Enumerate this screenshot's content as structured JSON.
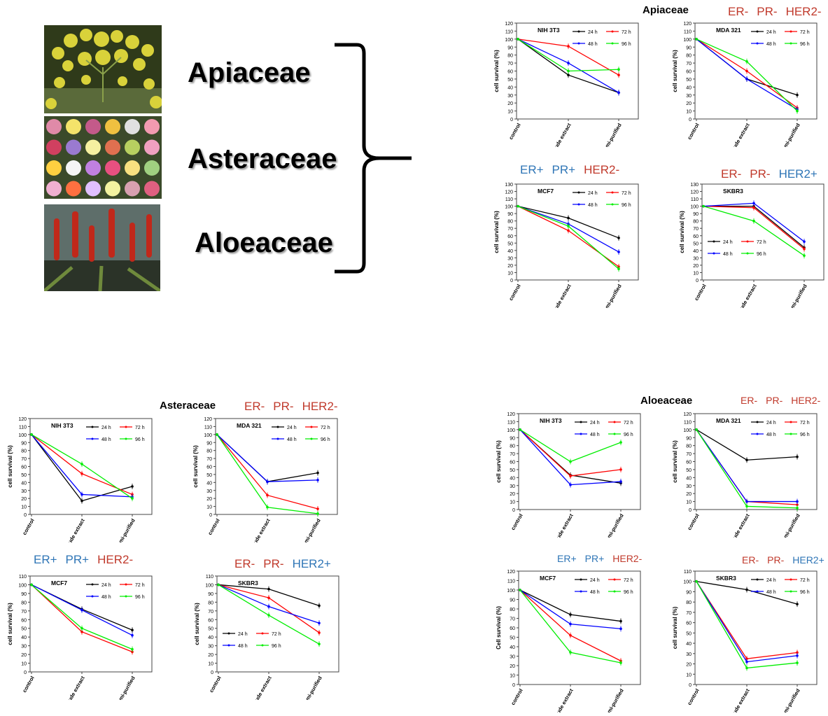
{
  "families": [
    "Apiaceae",
    "Asteraceae",
    "Aloeaceae"
  ],
  "groups": [
    {
      "title": "Apiaceae",
      "receptor_labels": [
        {
          "parts": [
            {
              "text": "ER-",
              "color": "#c0392b"
            },
            {
              "text": "PR-",
              "color": "#c0392b"
            },
            {
              "text": "HER2-",
              "color": "#c0392b"
            }
          ]
        },
        {
          "parts": [
            {
              "text": "ER+",
              "color": "#2e75b6"
            },
            {
              "text": "PR+",
              "color": "#2e75b6"
            },
            {
              "text": "HER2-",
              "color": "#c0392b"
            }
          ]
        },
        {
          "parts": [
            {
              "text": "ER-",
              "color": "#c0392b"
            },
            {
              "text": "PR-",
              "color": "#c0392b"
            },
            {
              "text": "HER2+",
              "color": "#2e75b6"
            }
          ]
        }
      ]
    },
    {
      "title": "Asteraceae",
      "receptor_labels": [
        {
          "parts": [
            {
              "text": "ER-",
              "color": "#c0392b"
            },
            {
              "text": "PR-",
              "color": "#c0392b"
            },
            {
              "text": "HER2-",
              "color": "#c0392b"
            }
          ]
        },
        {
          "parts": [
            {
              "text": "ER+",
              "color": "#2e75b6"
            },
            {
              "text": "PR+",
              "color": "#2e75b6"
            },
            {
              "text": "HER2-",
              "color": "#c0392b"
            }
          ]
        },
        {
          "parts": [
            {
              "text": "ER-",
              "color": "#c0392b"
            },
            {
              "text": "PR-",
              "color": "#c0392b"
            },
            {
              "text": "HER2+",
              "color": "#2e75b6"
            }
          ]
        }
      ]
    },
    {
      "title": "Aloeaceae",
      "receptor_labels": [
        {
          "parts": [
            {
              "text": "ER-",
              "color": "#c0392b"
            },
            {
              "text": "PR-",
              "color": "#c0392b"
            },
            {
              "text": "HER2-",
              "color": "#c0392b"
            }
          ]
        },
        {
          "parts": [
            {
              "text": "ER+",
              "color": "#2e75b6"
            },
            {
              "text": "PR+",
              "color": "#2e75b6"
            },
            {
              "text": "HER2-",
              "color": "#c0392b"
            }
          ]
        },
        {
          "parts": [
            {
              "text": "ER-",
              "color": "#c0392b"
            },
            {
              "text": "PR-",
              "color": "#c0392b"
            },
            {
              "text": "HER2+",
              "color": "#2e75b6"
            }
          ]
        }
      ]
    }
  ],
  "chart_data": [
    {
      "type": "line",
      "title": "NIH 3T3",
      "group": "Apiaceae",
      "categories": [
        "control",
        "crude extract",
        "semi-purified"
      ],
      "ylabel": "cell survival (%)",
      "ylim": [
        0,
        120
      ],
      "yticks": [
        0,
        10,
        20,
        30,
        40,
        50,
        60,
        70,
        80,
        90,
        100,
        110,
        120
      ],
      "legend": "top-right",
      "series": [
        {
          "name": "24 h",
          "color": "#000000",
          "values": [
            100,
            55,
            33
          ]
        },
        {
          "name": "72 h",
          "color": "#ff0000",
          "values": [
            100,
            91,
            55
          ]
        },
        {
          "name": "48 h",
          "color": "#0000ff",
          "values": [
            100,
            70,
            33
          ]
        },
        {
          "name": "96 h",
          "color": "#00ee00",
          "values": [
            100,
            60,
            62
          ]
        }
      ]
    },
    {
      "type": "line",
      "title": "MDA 321",
      "group": "Apiaceae",
      "categories": [
        "control",
        "crude extract",
        "semi-purified"
      ],
      "ylabel": "cell survival (%)",
      "ylim": [
        0,
        120
      ],
      "yticks": [
        0,
        10,
        20,
        30,
        40,
        50,
        60,
        70,
        80,
        90,
        100,
        110,
        120
      ],
      "legend": "top-right",
      "series": [
        {
          "name": "24 h",
          "color": "#000000",
          "values": [
            100,
            50,
            30
          ]
        },
        {
          "name": "72 h",
          "color": "#ff0000",
          "values": [
            100,
            60,
            14
          ]
        },
        {
          "name": "48 h",
          "color": "#0000ff",
          "values": [
            100,
            50,
            12
          ]
        },
        {
          "name": "96 h",
          "color": "#00ee00",
          "values": [
            100,
            72,
            10
          ]
        }
      ]
    },
    {
      "type": "line",
      "title": "MCF7",
      "group": "Apiaceae",
      "categories": [
        "control",
        "crude extract",
        "semi-purified"
      ],
      "ylabel": "cell survival (%)",
      "ylim": [
        0,
        130
      ],
      "yticks": [
        0,
        10,
        20,
        30,
        40,
        50,
        60,
        70,
        80,
        90,
        100,
        110,
        120,
        130
      ],
      "legend": "top-right",
      "series": [
        {
          "name": "24 h",
          "color": "#000000",
          "values": [
            100,
            84,
            57
          ]
        },
        {
          "name": "72 h",
          "color": "#ff0000",
          "values": [
            100,
            67,
            18
          ]
        },
        {
          "name": "48 h",
          "color": "#0000ff",
          "values": [
            100,
            76,
            38
          ]
        },
        {
          "name": "96 h",
          "color": "#00ee00",
          "values": [
            100,
            73,
            15
          ]
        }
      ]
    },
    {
      "type": "line",
      "title": "SKBR3",
      "group": "Apiaceae",
      "categories": [
        "control",
        "crude extract",
        "semi-purified"
      ],
      "ylabel": "cell survival (%)",
      "ylim": [
        0,
        130
      ],
      "yticks": [
        0,
        10,
        20,
        30,
        40,
        50,
        60,
        70,
        80,
        90,
        100,
        110,
        120,
        130
      ],
      "legend": "bottom-left",
      "series": [
        {
          "name": "24 h",
          "color": "#000000",
          "values": [
            100,
            100,
            44
          ]
        },
        {
          "name": "72 h",
          "color": "#ff0000",
          "values": [
            100,
            98,
            42
          ]
        },
        {
          "name": "48 h",
          "color": "#0000ff",
          "values": [
            100,
            104,
            52
          ]
        },
        {
          "name": "96 h",
          "color": "#00ee00",
          "values": [
            100,
            80,
            33
          ]
        }
      ]
    },
    {
      "type": "line",
      "title": "NIH 3T3",
      "group": "Asteraceae",
      "categories": [
        "control",
        "crude extract",
        "semi-purified"
      ],
      "ylabel": "cell survival (%)",
      "ylim": [
        0,
        120
      ],
      "yticks": [
        0,
        10,
        20,
        30,
        40,
        50,
        60,
        70,
        80,
        90,
        100,
        110,
        120
      ],
      "legend": "top-right",
      "series": [
        {
          "name": "24 h",
          "color": "#000000",
          "values": [
            100,
            17,
            35
          ]
        },
        {
          "name": "72 h",
          "color": "#ff0000",
          "values": [
            100,
            51,
            25
          ]
        },
        {
          "name": "48 h",
          "color": "#0000ff",
          "values": [
            100,
            25,
            22
          ]
        },
        {
          "name": "96 h",
          "color": "#00ee00",
          "values": [
            100,
            63,
            20
          ]
        }
      ]
    },
    {
      "type": "line",
      "title": "MDA 321",
      "group": "Asteraceae",
      "categories": [
        "control",
        "crude extract",
        "semi-purified"
      ],
      "ylabel": "cell survival (%)",
      "ylim": [
        0,
        120
      ],
      "yticks": [
        0,
        10,
        20,
        30,
        40,
        50,
        60,
        70,
        80,
        90,
        100,
        110,
        120
      ],
      "legend": "top-right",
      "series": [
        {
          "name": "24 h",
          "color": "#000000",
          "values": [
            100,
            41,
            52
          ]
        },
        {
          "name": "72 h",
          "color": "#ff0000",
          "values": [
            100,
            24,
            7
          ]
        },
        {
          "name": "48 h",
          "color": "#0000ff",
          "values": [
            100,
            41,
            43
          ]
        },
        {
          "name": "96 h",
          "color": "#00ee00",
          "values": [
            100,
            9,
            1
          ]
        }
      ]
    },
    {
      "type": "line",
      "title": "MCF7",
      "group": "Asteraceae",
      "categories": [
        "control",
        "crude extract",
        "semi-purified"
      ],
      "ylabel": "cell survival (%)",
      "ylim": [
        0,
        110
      ],
      "yticks": [
        0,
        10,
        20,
        30,
        40,
        50,
        60,
        70,
        80,
        90,
        100,
        110
      ],
      "legend": "top-right",
      "series": [
        {
          "name": "24 h",
          "color": "#000000",
          "values": [
            100,
            72,
            48
          ]
        },
        {
          "name": "72 h",
          "color": "#ff0000",
          "values": [
            100,
            46,
            23
          ]
        },
        {
          "name": "48 h",
          "color": "#0000ff",
          "values": [
            100,
            71,
            42
          ]
        },
        {
          "name": "96 h",
          "color": "#00ee00",
          "values": [
            100,
            50,
            26
          ]
        }
      ]
    },
    {
      "type": "line",
      "title": "SKBR3",
      "group": "Asteraceae",
      "categories": [
        "control",
        "crude extract",
        "semi-purified"
      ],
      "ylabel": "cell survival (%)",
      "ylim": [
        0,
        110
      ],
      "yticks": [
        0,
        10,
        20,
        30,
        40,
        50,
        60,
        70,
        80,
        90,
        100,
        110
      ],
      "legend": "bottom-left",
      "series": [
        {
          "name": "24 h",
          "color": "#000000",
          "values": [
            100,
            95,
            76
          ]
        },
        {
          "name": "72 h",
          "color": "#ff0000",
          "values": [
            100,
            85,
            45
          ]
        },
        {
          "name": "48 h",
          "color": "#0000ff",
          "values": [
            100,
            75,
            56
          ]
        },
        {
          "name": "96 h",
          "color": "#00ee00",
          "values": [
            100,
            65,
            32
          ]
        }
      ]
    },
    {
      "type": "line",
      "title": "NIH 3T3",
      "group": "Aloeaceae",
      "categories": [
        "control",
        "crude extract",
        "semi-purified"
      ],
      "ylabel": "cell survival (%)",
      "ylim": [
        0,
        120
      ],
      "yticks": [
        0,
        10,
        20,
        30,
        40,
        50,
        60,
        70,
        80,
        90,
        100,
        110,
        120
      ],
      "legend": "top-right",
      "series": [
        {
          "name": "24 h",
          "color": "#000000",
          "values": [
            100,
            43,
            33
          ]
        },
        {
          "name": "72 h",
          "color": "#ff0000",
          "values": [
            100,
            42,
            50
          ]
        },
        {
          "name": "48 h",
          "color": "#0000ff",
          "values": [
            100,
            31,
            35
          ]
        },
        {
          "name": "96 h",
          "color": "#00ee00",
          "values": [
            100,
            60,
            84
          ]
        }
      ]
    },
    {
      "type": "line",
      "title": "MDA 321",
      "group": "Aloeaceae",
      "categories": [
        "control",
        "crude extract",
        "semi-purified"
      ],
      "ylabel": "cell survival (%)",
      "ylim": [
        0,
        120
      ],
      "yticks": [
        0,
        10,
        20,
        30,
        40,
        50,
        60,
        70,
        80,
        90,
        100,
        110,
        120
      ],
      "legend": "top-right",
      "series": [
        {
          "name": "24 h",
          "color": "#000000",
          "values": [
            100,
            62,
            66
          ]
        },
        {
          "name": "72 h",
          "color": "#ff0000",
          "values": [
            100,
            10,
            6
          ]
        },
        {
          "name": "48 h",
          "color": "#0000ff",
          "values": [
            100,
            10,
            10
          ]
        },
        {
          "name": "96 h",
          "color": "#00ee00",
          "values": [
            100,
            4,
            2
          ]
        }
      ]
    },
    {
      "type": "line",
      "title": "MCF7",
      "group": "Aloeaceae",
      "categories": [
        "control",
        "crude extract",
        "semi-purified"
      ],
      "ylabel": "Cell survival (%)",
      "ylim": [
        0,
        120
      ],
      "yticks": [
        0,
        10,
        20,
        30,
        40,
        50,
        60,
        70,
        80,
        90,
        100,
        110,
        120
      ],
      "legend": "top-right",
      "series": [
        {
          "name": "24 h",
          "color": "#000000",
          "values": [
            100,
            74,
            67
          ]
        },
        {
          "name": "72 h",
          "color": "#ff0000",
          "values": [
            100,
            52,
            25
          ]
        },
        {
          "name": "48 h",
          "color": "#0000ff",
          "values": [
            100,
            64,
            59
          ]
        },
        {
          "name": "96 h",
          "color": "#00ee00",
          "values": [
            100,
            34,
            23
          ]
        }
      ]
    },
    {
      "type": "line",
      "title": "SKBR3",
      "group": "Aloeaceae",
      "categories": [
        "control",
        "crude extract",
        "semi-purified"
      ],
      "ylabel": "cell survival (%)",
      "ylim": [
        0,
        110
      ],
      "yticks": [
        0,
        10,
        20,
        30,
        40,
        50,
        60,
        70,
        80,
        90,
        100,
        110
      ],
      "legend": "top-right",
      "series": [
        {
          "name": "24 h",
          "color": "#000000",
          "values": [
            100,
            92,
            78
          ]
        },
        {
          "name": "72 h",
          "color": "#ff0000",
          "values": [
            100,
            25,
            31
          ]
        },
        {
          "name": "48 h",
          "color": "#0000ff",
          "values": [
            100,
            22,
            28
          ]
        },
        {
          "name": "96 h",
          "color": "#00ee00",
          "values": [
            100,
            16,
            21
          ]
        }
      ]
    }
  ]
}
